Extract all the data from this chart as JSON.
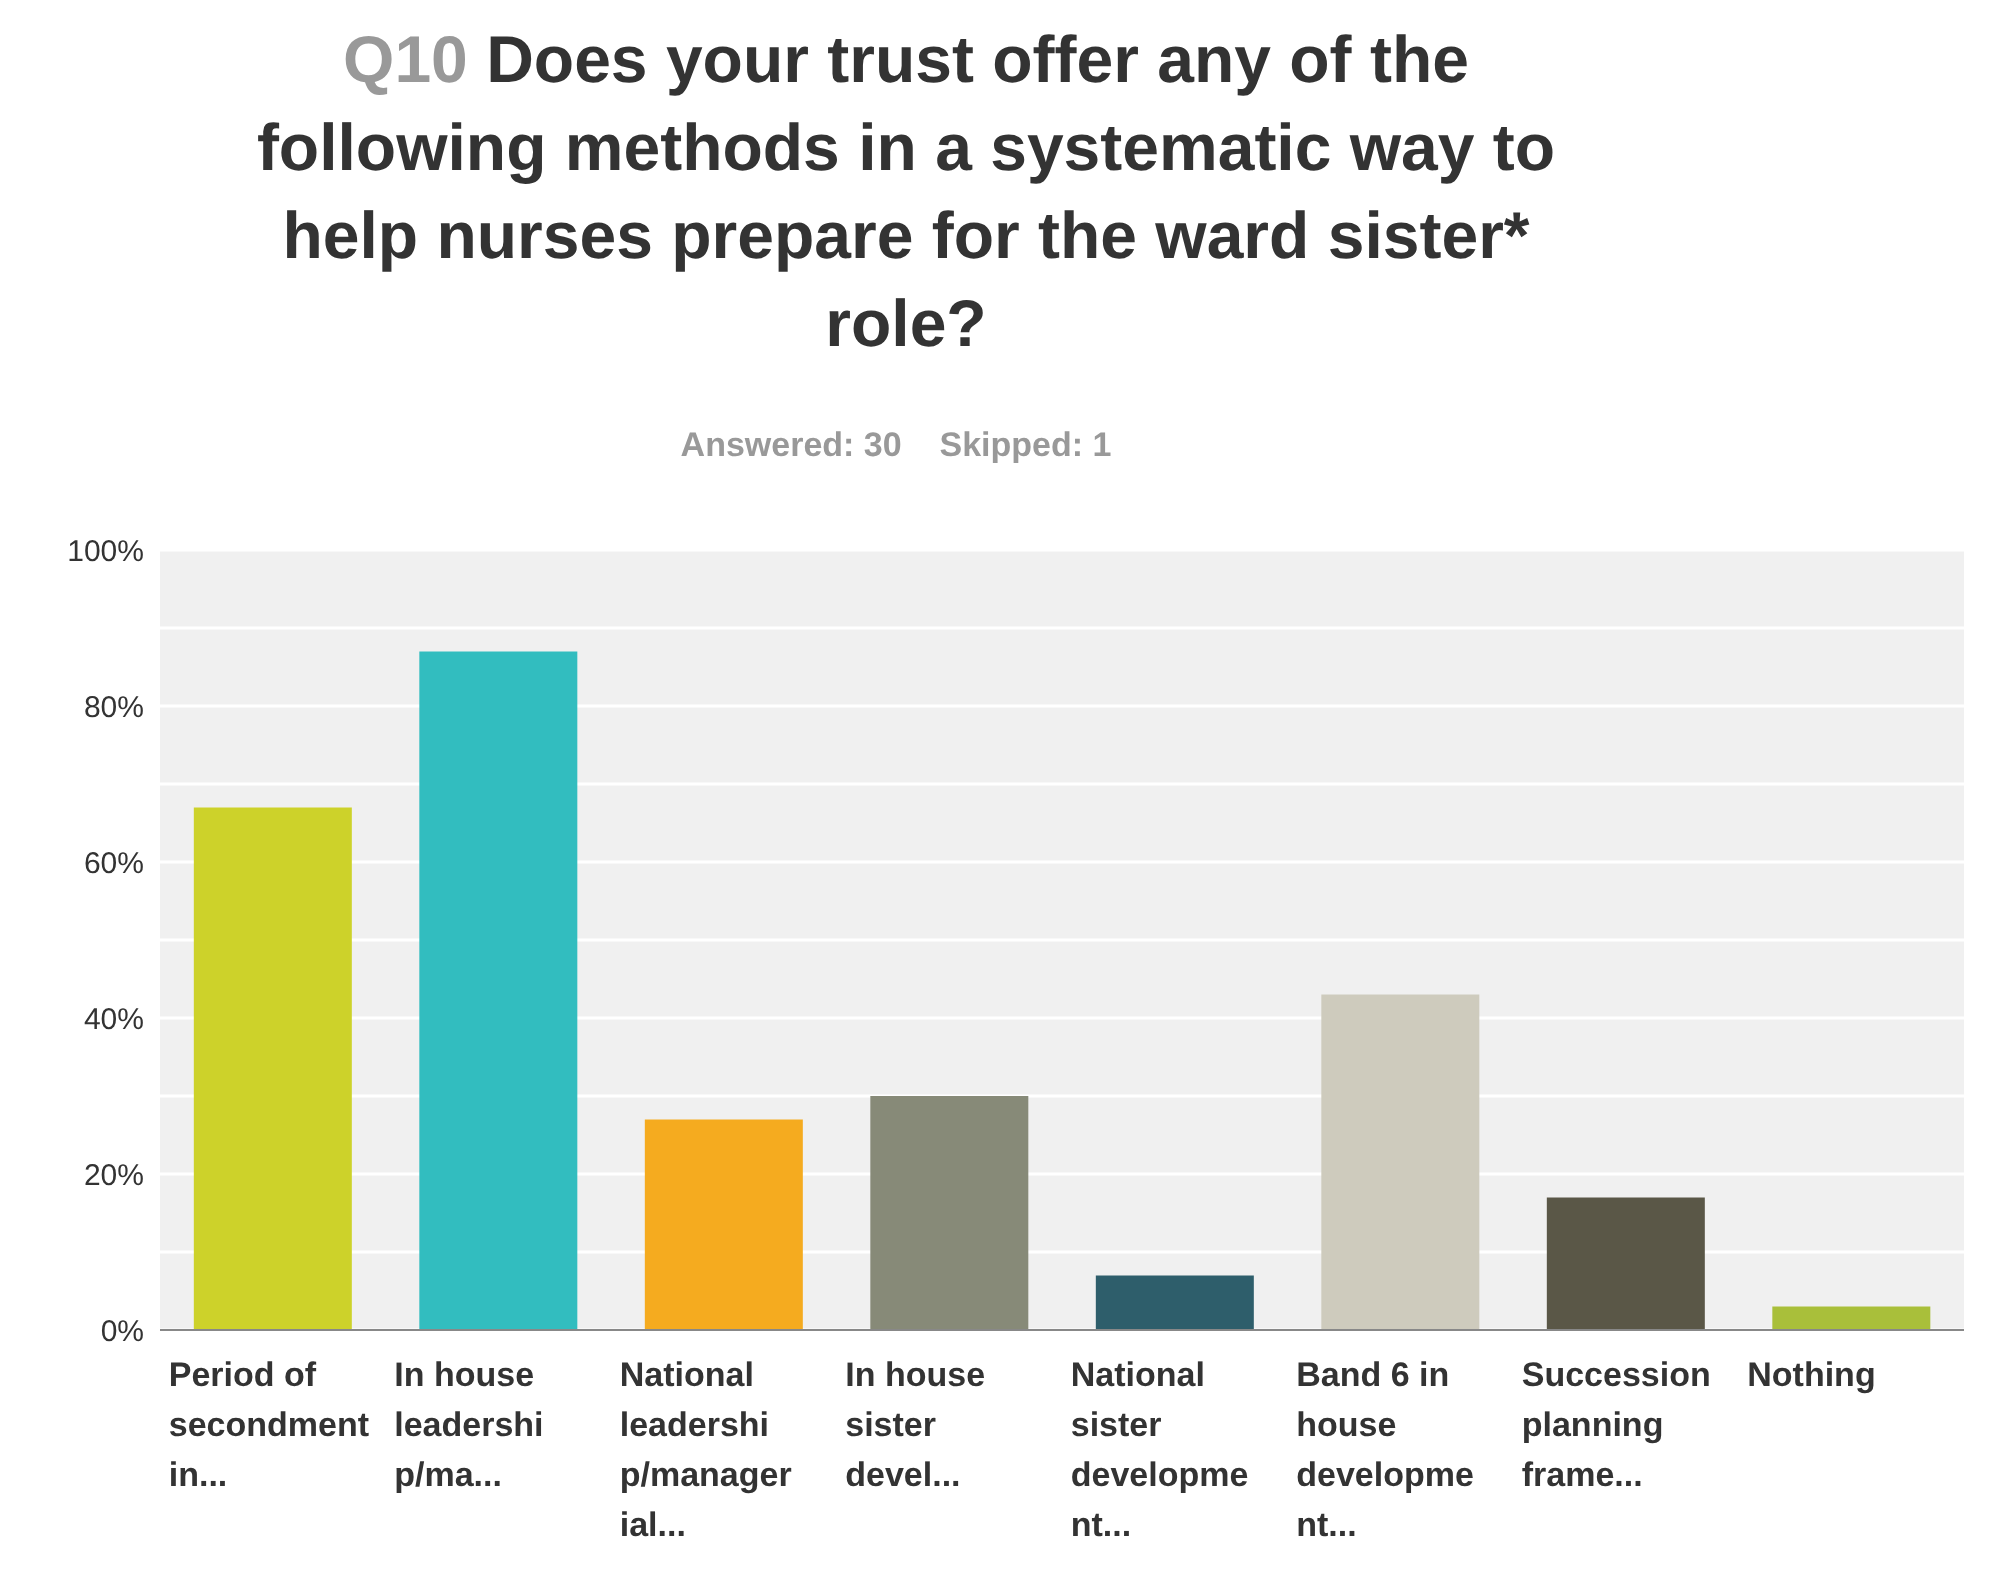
{
  "chart_data": {
    "type": "bar",
    "title": "Q10 Does your trust offer any of the following methods in a systematic way to help nurses prepare for the ward sister* role?",
    "subtitle": "Answered: 30    Skipped: 1",
    "categories": [
      "Period of secondment in...",
      "In house leadership/ma...",
      "National leadership/managerial...",
      "In house sister devel...",
      "National sister development...",
      "Band 6 in house development...",
      "Succession planning frame...",
      "Nothing"
    ],
    "values": [
      67,
      87,
      27,
      30,
      7,
      43,
      17,
      3
    ],
    "colors": [
      "#cdd22a",
      "#32bdbf",
      "#f5ab1f",
      "#878a78",
      "#2e5e6b",
      "#cecbbd",
      "#5a5747",
      "#a9bf3a"
    ],
    "ylim": [
      0,
      100
    ],
    "yticks": [
      {
        "value": 0,
        "label": "0%"
      },
      {
        "value": 10,
        "label": null
      },
      {
        "value": 20,
        "label": "20%"
      },
      {
        "value": 30,
        "label": null
      },
      {
        "value": 40,
        "label": "40%"
      },
      {
        "value": 50,
        "label": null
      },
      {
        "value": 60,
        "label": "60%"
      },
      {
        "value": 70,
        "label": null
      },
      {
        "value": 80,
        "label": "80%"
      },
      {
        "value": 90,
        "label": null
      },
      {
        "value": 100,
        "label": "100%"
      }
    ],
    "grid": "y"
  }
}
